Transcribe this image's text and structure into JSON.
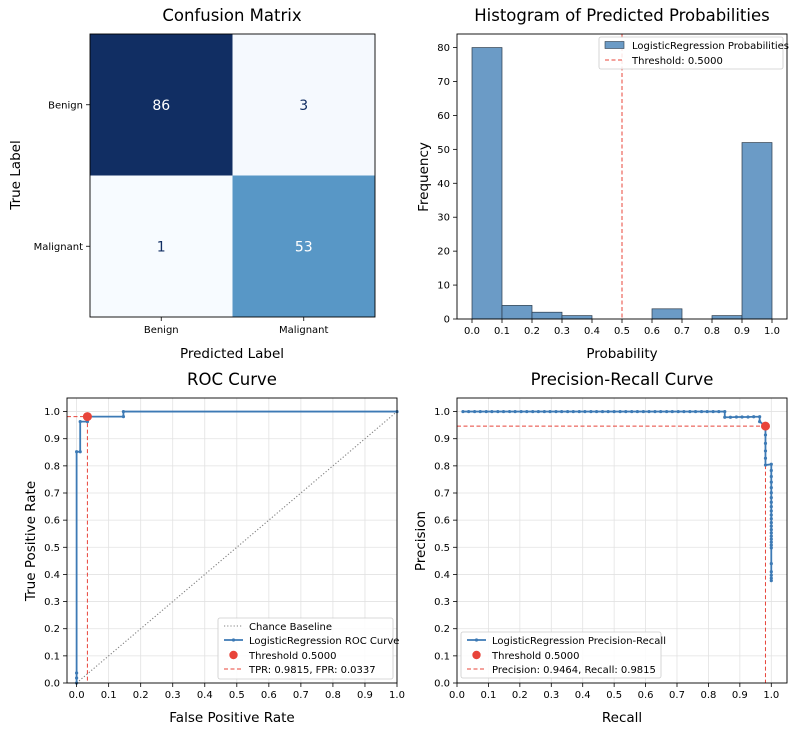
{
  "chart_data": [
    {
      "type": "heatmap",
      "title": "Confusion Matrix",
      "xlabel": "Predicted Label",
      "ylabel": "True Label",
      "x_categories": [
        "Benign",
        "Malignant"
      ],
      "y_categories": [
        "Benign",
        "Malignant"
      ],
      "values": [
        [
          86,
          3
        ],
        [
          1,
          53
        ]
      ],
      "colormap": "Blues",
      "cell_colors": [
        [
          "#112e63",
          "#f5f9fe"
        ],
        [
          "#f7fbff",
          "#5897c6"
        ]
      ],
      "text_colors": [
        [
          "#ffffff",
          "#112e63"
        ],
        [
          "#112e63",
          "#ffffff"
        ]
      ]
    },
    {
      "type": "bar",
      "title": "Histogram of Predicted Probabilities",
      "xlabel": "Probability",
      "ylabel": "Frequency",
      "bin_edges": [
        0.0,
        0.1,
        0.2,
        0.3,
        0.4,
        0.5,
        0.6,
        0.7,
        0.8,
        0.9,
        1.0
      ],
      "counts": [
        80,
        4,
        2,
        1,
        0,
        0,
        3,
        0,
        1,
        52
      ],
      "xlim": [
        -0.05,
        1.05
      ],
      "ylim": [
        0,
        84
      ],
      "xticks": [
        "0.0",
        "0.1",
        "0.2",
        "0.3",
        "0.4",
        "0.5",
        "0.6",
        "0.7",
        "0.8",
        "0.9",
        "1.0"
      ],
      "yticks": [
        "0",
        "10",
        "20",
        "30",
        "40",
        "50",
        "60",
        "70",
        "80"
      ],
      "threshold": 0.5,
      "bar_color": "#6b9bc6",
      "threshold_color": "#e8443a",
      "legend_position": "top-right",
      "legend": [
        "LogisticRegression Probabilities",
        "Threshold: 0.5000"
      ]
    },
    {
      "type": "line",
      "title": "ROC Curve",
      "xlabel": "False Positive Rate",
      "ylabel": "True Positive Rate",
      "xlim": [
        -0.03,
        1.0
      ],
      "ylim": [
        0.0,
        1.05
      ],
      "xticks": [
        "0.0",
        "0.1",
        "0.2",
        "0.3",
        "0.4",
        "0.5",
        "0.6",
        "0.7",
        "0.8",
        "0.9",
        "1.0"
      ],
      "yticks": [
        "0.0",
        "0.1",
        "0.2",
        "0.3",
        "0.4",
        "0.5",
        "0.6",
        "0.7",
        "0.8",
        "0.9",
        "1.0"
      ],
      "grid": true,
      "legend_position": "bottom-right",
      "series": [
        {
          "name": "Chance Baseline",
          "style": "dotted",
          "color": "#808080",
          "x": [
            0,
            1
          ],
          "y": [
            0,
            1
          ]
        },
        {
          "name": "LogisticRegression ROC Curve",
          "style": "solid",
          "color": "#3d7ab5",
          "x": [
            0.0,
            0.0,
            0.0,
            0.0,
            0.0112,
            0.0112,
            0.0337,
            0.0337,
            0.1461,
            0.1461,
            1.0
          ],
          "y": [
            0.0,
            0.0185,
            0.037,
            0.8519,
            0.8519,
            0.963,
            0.963,
            0.9815,
            0.9815,
            1.0,
            1.0
          ]
        }
      ],
      "threshold_point": {
        "name": "Threshold 0.5000",
        "x": 0.0337,
        "y": 0.9815,
        "color": "#e8443a"
      },
      "threshold_lines_label": "TPR: 0.9815, FPR: 0.0337"
    },
    {
      "type": "line",
      "title": "Precision-Recall Curve",
      "xlabel": "Recall",
      "ylabel": "Precision",
      "xlim": [
        0.0,
        1.05
      ],
      "ylim": [
        0.0,
        1.05
      ],
      "xticks": [
        "0.0",
        "0.1",
        "0.2",
        "0.3",
        "0.4",
        "0.5",
        "0.6",
        "0.7",
        "0.8",
        "0.9",
        "1.0"
      ],
      "yticks": [
        "0.0",
        "0.1",
        "0.2",
        "0.3",
        "0.4",
        "0.5",
        "0.6",
        "0.7",
        "0.8",
        "0.9",
        "1.0"
      ],
      "grid": true,
      "legend_position": "bottom-left",
      "series": [
        {
          "name": "LogisticRegression Precision-Recall",
          "style": "solid",
          "color": "#3d7ab5",
          "x": [
            0.019,
            0.037,
            0.056,
            0.074,
            0.093,
            0.111,
            0.13,
            0.148,
            0.167,
            0.185,
            0.204,
            0.222,
            0.241,
            0.259,
            0.278,
            0.296,
            0.315,
            0.333,
            0.352,
            0.37,
            0.389,
            0.407,
            0.426,
            0.444,
            0.463,
            0.481,
            0.5,
            0.519,
            0.537,
            0.556,
            0.574,
            0.593,
            0.611,
            0.63,
            0.648,
            0.667,
            0.685,
            0.704,
            0.722,
            0.741,
            0.759,
            0.778,
            0.796,
            0.815,
            0.833,
            0.852,
            0.852,
            0.87,
            0.889,
            0.907,
            0.926,
            0.944,
            0.963,
            0.963,
            0.9815,
            0.9815,
            0.9815,
            0.9815,
            0.9815,
            0.9815,
            1.0,
            1.0,
            1.0,
            1.0,
            1.0,
            1.0,
            1.0,
            1.0,
            1.0,
            1.0,
            1.0,
            1.0,
            1.0,
            1.0,
            1.0,
            1.0,
            1.0,
            1.0,
            1.0,
            1.0,
            1.0,
            1.0,
            1.0,
            1.0,
            1.0,
            1.0
          ],
          "y": [
            1.0,
            1.0,
            1.0,
            1.0,
            1.0,
            1.0,
            1.0,
            1.0,
            1.0,
            1.0,
            1.0,
            1.0,
            1.0,
            1.0,
            1.0,
            1.0,
            1.0,
            1.0,
            1.0,
            1.0,
            1.0,
            1.0,
            1.0,
            1.0,
            1.0,
            1.0,
            1.0,
            1.0,
            1.0,
            1.0,
            1.0,
            1.0,
            1.0,
            1.0,
            1.0,
            1.0,
            1.0,
            1.0,
            1.0,
            1.0,
            1.0,
            1.0,
            1.0,
            1.0,
            1.0,
            1.0,
            0.979,
            0.979,
            0.98,
            0.98,
            0.98,
            0.981,
            0.981,
            0.963,
            0.9464,
            0.914,
            0.883,
            0.855,
            0.828,
            0.803,
            0.806,
            0.783,
            0.761,
            0.74,
            0.72,
            0.701,
            0.683,
            0.666,
            0.65,
            0.634,
            0.619,
            0.605,
            0.591,
            0.578,
            0.565,
            0.553,
            0.541,
            0.53,
            0.519,
            0.508,
            0.498,
            0.44,
            0.41,
            0.397,
            0.386,
            0.377
          ]
        }
      ],
      "threshold_point": {
        "name": "Threshold 0.5000",
        "x": 0.9815,
        "y": 0.9464,
        "color": "#e8443a"
      },
      "threshold_lines_label": "Precision: 0.9464, Recall: 0.9815"
    }
  ]
}
